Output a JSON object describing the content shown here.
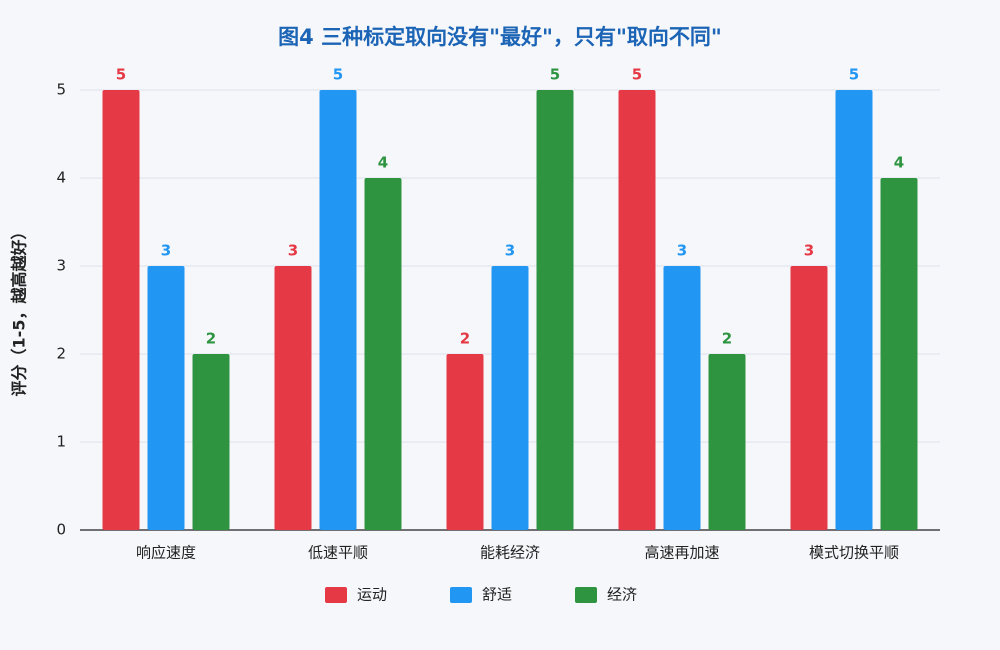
{
  "chart_data": {
    "type": "bar",
    "title": "图4 三种标定取向没有\"最好\"，只有\"取向不同\"",
    "y_label": "评分（1-5，越高越好）",
    "categories": [
      "响应速度",
      "低速平顺",
      "能耗经济",
      "高速再加速",
      "模式切换平顺"
    ],
    "series": [
      {
        "name": "运动",
        "color": "#e63946",
        "values": [
          5,
          3,
          2,
          5,
          3
        ]
      },
      {
        "name": "舒适",
        "color": "#2196f3",
        "values": [
          3,
          5,
          3,
          3,
          5
        ]
      },
      {
        "name": "经济",
        "color": "#2e9440",
        "values": [
          2,
          4,
          5,
          2,
          4
        ]
      }
    ],
    "ylim": [
      0,
      5
    ],
    "yticks": [
      0,
      1,
      2,
      3,
      4,
      5
    ],
    "grid": true,
    "legend": "bottom"
  }
}
